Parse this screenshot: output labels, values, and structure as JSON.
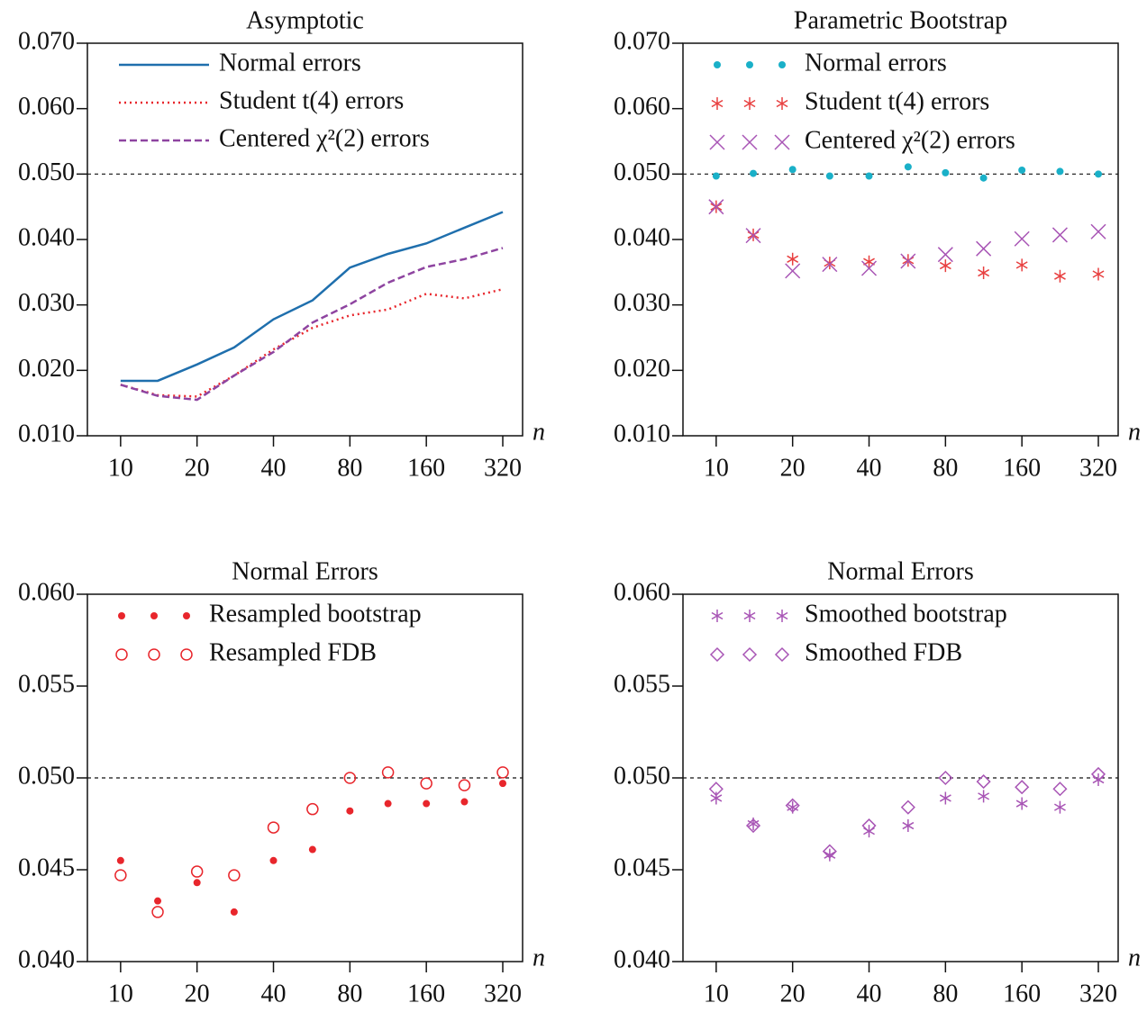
{
  "chart_data": [
    {
      "type": "line",
      "title": "Asymptotic",
      "xlabel": "n",
      "xscale": "log",
      "legend": "upper left",
      "hline": 0.05,
      "x": [
        10,
        14,
        20,
        28,
        40,
        57,
        80,
        113,
        160,
        226,
        320
      ],
      "xlim": [
        7.4,
        383
      ],
      "xticks": [
        10,
        20,
        40,
        80,
        160,
        320
      ],
      "ylim": [
        0.01,
        0.07
      ],
      "yticks": [
        {
          "value": 0.01,
          "label": "0.010"
        },
        {
          "value": 0.02,
          "label": "0.020"
        },
        {
          "value": 0.03,
          "label": "0.030"
        },
        {
          "value": 0.04,
          "label": "0.040"
        },
        {
          "value": 0.05,
          "label": "0.050"
        },
        {
          "value": 0.06,
          "label": "0.060"
        },
        {
          "value": 0.07,
          "label": "0.070"
        }
      ],
      "series": [
        {
          "name": "Normal errors",
          "color": "#1f6fad",
          "dash": "solid",
          "values": [
            0.0184,
            0.0184,
            0.0209,
            0.0235,
            0.0278,
            0.0307,
            0.0357,
            0.0378,
            0.0394,
            0.0418,
            0.0442
          ]
        },
        {
          "name": "Student t(4) errors",
          "color": "#e8262c",
          "dash": "dotted",
          "values": [
            0.0178,
            0.0162,
            0.016,
            0.0192,
            0.0232,
            0.0265,
            0.0284,
            0.0293,
            0.0317,
            0.031,
            0.0324
          ]
        },
        {
          "name": "Centered χ²(2) errors",
          "color": "#8e44a0",
          "dash": "dashed",
          "values": [
            0.0178,
            0.0161,
            0.0155,
            0.0192,
            0.0228,
            0.0273,
            0.0301,
            0.0334,
            0.0358,
            0.037,
            0.0387
          ]
        }
      ]
    },
    {
      "type": "scatter",
      "title": "Parametric Bootstrap",
      "xlabel": "n",
      "xscale": "log",
      "legend": "upper left",
      "hline": 0.05,
      "x": [
        10,
        14,
        20,
        28,
        40,
        57,
        80,
        113,
        160,
        226,
        320
      ],
      "xlim": [
        7.4,
        383
      ],
      "xticks": [
        10,
        20,
        40,
        80,
        160,
        320
      ],
      "ylim": [
        0.01,
        0.07
      ],
      "yticks": [
        {
          "value": 0.01,
          "label": "0.010"
        },
        {
          "value": 0.02,
          "label": "0.020"
        },
        {
          "value": 0.03,
          "label": "0.030"
        },
        {
          "value": 0.04,
          "label": "0.040"
        },
        {
          "value": 0.05,
          "label": "0.050"
        },
        {
          "value": 0.06,
          "label": "0.060"
        },
        {
          "value": 0.07,
          "label": "0.070"
        }
      ],
      "series": [
        {
          "name": "Normal errors",
          "color": "#1ab0c8",
          "marker": "dot",
          "values": [
            0.0497,
            0.0501,
            0.0507,
            0.0497,
            0.0497,
            0.0511,
            0.0502,
            0.0494,
            0.0506,
            0.0504,
            0.05
          ]
        },
        {
          "name": "Student t(4) errors",
          "color": "#e84040",
          "marker": "star",
          "values": [
            0.045,
            0.0407,
            0.037,
            0.0364,
            0.0366,
            0.0368,
            0.036,
            0.0349,
            0.0361,
            0.0344,
            0.0347
          ]
        },
        {
          "name": "Centered χ²(2) errors",
          "color": "#a855b5",
          "marker": "x",
          "values": [
            0.045,
            0.0406,
            0.0352,
            0.0362,
            0.0356,
            0.0367,
            0.0377,
            0.0386,
            0.0401,
            0.0407,
            0.0412
          ]
        }
      ]
    },
    {
      "type": "scatter",
      "title": "Normal Errors",
      "xlabel": "n",
      "xscale": "log",
      "legend": "upper left",
      "hline": 0.05,
      "x": [
        10,
        14,
        20,
        28,
        40,
        57,
        80,
        113,
        160,
        226,
        320
      ],
      "xlim": [
        7.4,
        383
      ],
      "xticks": [
        10,
        20,
        40,
        80,
        160,
        320
      ],
      "ylim": [
        0.04,
        0.06
      ],
      "yticks": [
        {
          "value": 0.04,
          "label": "0.040"
        },
        {
          "value": 0.045,
          "label": "0.045"
        },
        {
          "value": 0.05,
          "label": "0.050"
        },
        {
          "value": 0.055,
          "label": "0.055"
        },
        {
          "value": 0.06,
          "label": "0.060"
        }
      ],
      "series": [
        {
          "name": "Resampled bootstrap",
          "color": "#e8262c",
          "marker": "dot",
          "values": [
            0.0455,
            0.0433,
            0.0443,
            0.0427,
            0.0455,
            0.0461,
            0.0482,
            0.0486,
            0.0486,
            0.0487,
            0.0497
          ]
        },
        {
          "name": "Resampled FDB",
          "color": "#e8262c",
          "marker": "circle",
          "values": [
            0.0447,
            0.0427,
            0.0449,
            0.0447,
            0.0473,
            0.0483,
            0.05,
            0.0503,
            0.0497,
            0.0496,
            0.0503
          ]
        }
      ]
    },
    {
      "type": "scatter",
      "title": "Normal Errors",
      "xlabel": "n",
      "xscale": "log",
      "legend": "upper left",
      "hline": 0.05,
      "x": [
        10,
        14,
        20,
        28,
        40,
        57,
        80,
        113,
        160,
        226,
        320
      ],
      "xlim": [
        7.4,
        383
      ],
      "xticks": [
        10,
        20,
        40,
        80,
        160,
        320
      ],
      "ylim": [
        0.04,
        0.06
      ],
      "yticks": [
        {
          "value": 0.04,
          "label": "0.040"
        },
        {
          "value": 0.045,
          "label": "0.045"
        },
        {
          "value": 0.05,
          "label": "0.050"
        },
        {
          "value": 0.055,
          "label": "0.055"
        },
        {
          "value": 0.06,
          "label": "0.060"
        }
      ],
      "series": [
        {
          "name": "Smoothed bootstrap",
          "color": "#a855b5",
          "marker": "star",
          "values": [
            0.0489,
            0.0475,
            0.0484,
            0.0458,
            0.0471,
            0.0474,
            0.0489,
            0.049,
            0.0486,
            0.0484,
            0.0499
          ]
        },
        {
          "name": "Smoothed FDB",
          "color": "#a855b5",
          "marker": "diamond",
          "values": [
            0.0494,
            0.0474,
            0.0485,
            0.046,
            0.0474,
            0.0484,
            0.05,
            0.0498,
            0.0495,
            0.0494,
            0.0502
          ]
        }
      ]
    }
  ]
}
